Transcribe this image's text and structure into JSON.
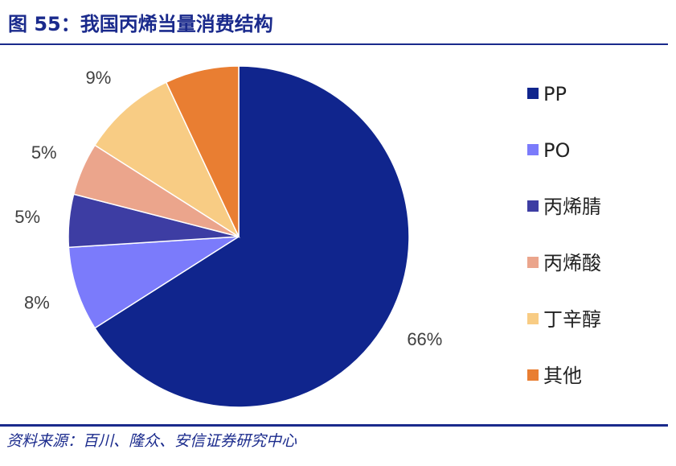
{
  "figure": {
    "title": "图 55：我国丙烯当量消费结构",
    "source": "资料来源：百川、隆众、安信证券研究中心"
  },
  "chart_data": {
    "type": "pie",
    "title": "",
    "start_angle_deg": 0,
    "direction": "clockwise",
    "legend_position": "right",
    "slices": [
      {
        "name": "PP",
        "value": 66,
        "label": "66%",
        "color": "#10258d"
      },
      {
        "name": "PO",
        "value": 8,
        "label": "8%",
        "color": "#7b7bfb"
      },
      {
        "name": "丙烯腈",
        "value": 5,
        "label": "5%",
        "color": "#3d3da3"
      },
      {
        "name": "丙烯酸",
        "value": 5,
        "label": "5%",
        "color": "#eba58c"
      },
      {
        "name": "丁辛醇",
        "value": 9,
        "label": "9%",
        "color": "#f8cc84"
      },
      {
        "name": "其他",
        "value": 7,
        "label": "7%",
        "color": "#e97e32"
      }
    ]
  }
}
